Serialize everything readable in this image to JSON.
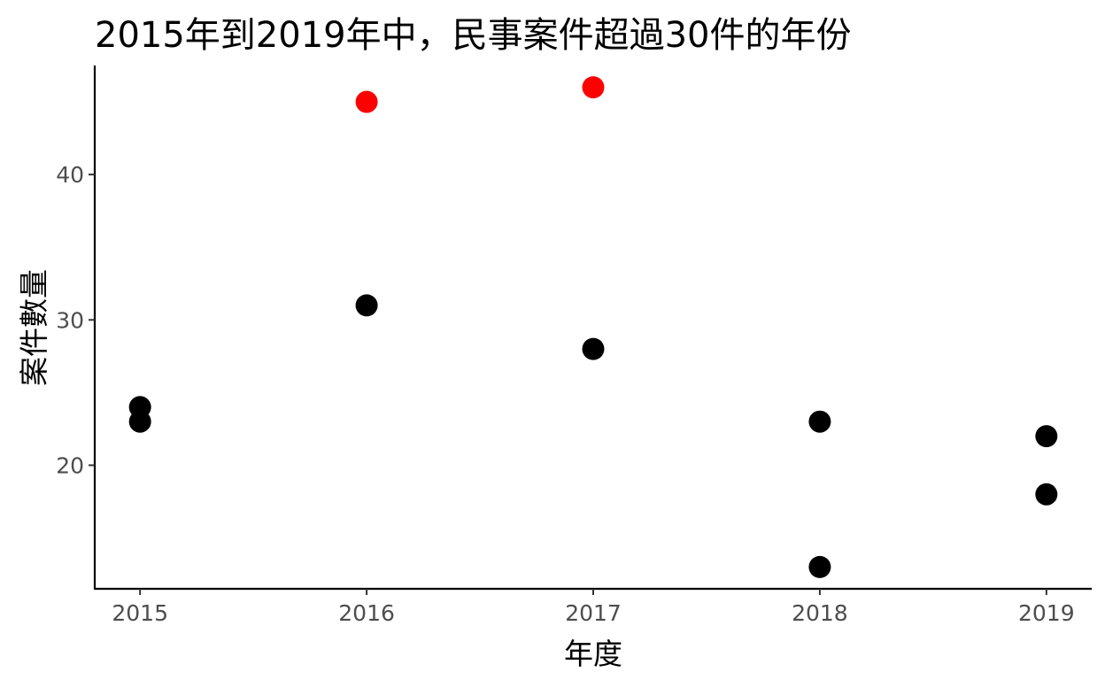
{
  "chart_data": {
    "type": "scatter",
    "title": "2015年到2019年中，民事案件超過30件的年份",
    "xlabel": "年度",
    "ylabel": "案件數量",
    "x_ticks": [
      "2015",
      "2016",
      "2017",
      "2018",
      "2019"
    ],
    "y_ticks": [
      "20",
      "30",
      "40"
    ],
    "xlim": [
      2014.8,
      2019.2
    ],
    "ylim": [
      11.5,
      47.5
    ],
    "grid": false,
    "legend": "none",
    "colors": {
      "highlight": "#ff0000",
      "normal": "#000000"
    },
    "points": [
      {
        "x": 2015,
        "y": 24,
        "highlight": false
      },
      {
        "x": 2015,
        "y": 23,
        "highlight": false
      },
      {
        "x": 2016,
        "y": 45,
        "highlight": true
      },
      {
        "x": 2016,
        "y": 31,
        "highlight": false
      },
      {
        "x": 2017,
        "y": 46,
        "highlight": true
      },
      {
        "x": 2017,
        "y": 28,
        "highlight": false
      },
      {
        "x": 2018,
        "y": 23,
        "highlight": false
      },
      {
        "x": 2018,
        "y": 13,
        "highlight": false
      },
      {
        "x": 2019,
        "y": 22,
        "highlight": false
      },
      {
        "x": 2019,
        "y": 18,
        "highlight": false
      }
    ]
  }
}
